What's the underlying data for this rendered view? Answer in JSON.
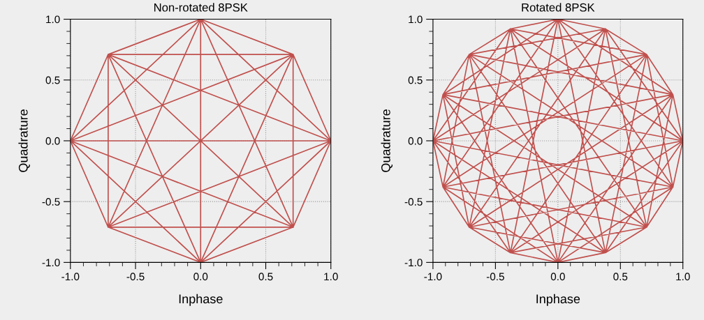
{
  "chart_data": [
    {
      "type": "line",
      "title": "Non-rotated 8PSK",
      "xlabel": "Inphase",
      "ylabel": "Quadrature",
      "xlim": [
        -1.0,
        1.0
      ],
      "ylim": [
        -1.0,
        1.0
      ],
      "xticks": [
        {
          "value": -1,
          "label": "-1.0"
        },
        {
          "value": -0.5,
          "label": "-0.5"
        },
        {
          "value": 0,
          "label": "0.0"
        },
        {
          "value": 0.5,
          "label": "0.5"
        },
        {
          "value": 1,
          "label": "1.0"
        }
      ],
      "yticks": [
        {
          "value": -1,
          "label": "-1.0"
        },
        {
          "value": -0.5,
          "label": "-0.5"
        },
        {
          "value": 0,
          "label": "0.0"
        },
        {
          "value": 0.5,
          "label": "0.5"
        },
        {
          "value": 1,
          "label": "1.0"
        }
      ],
      "grid": true,
      "series": [
        {
          "color": "#c0504d",
          "x": [
            1,
            0.71,
            1,
            0,
            1,
            -0.71,
            1,
            -1,
            1,
            -0.71,
            1,
            0,
            1,
            0.71,
            null,
            0.71,
            0,
            0.71,
            -0.71,
            0.71,
            -1,
            0.71,
            -0.71,
            0.71,
            0,
            0.71,
            0.71,
            null,
            0,
            -0.71,
            0,
            -1,
            0,
            -0.71,
            0,
            0,
            0,
            0.71,
            null,
            -0.71,
            -1,
            -0.71,
            -0.71,
            -0.71,
            0,
            -0.71,
            0.71,
            null,
            -1,
            -0.71,
            -1,
            0,
            -1,
            0.71,
            null,
            -0.71,
            0,
            -0.71,
            0.71,
            null,
            0,
            0.71
          ],
          "values": [
            0,
            0.71,
            0,
            1,
            0,
            0.71,
            0,
            0,
            0,
            -0.71,
            0,
            -1,
            0,
            -0.71,
            null,
            0.71,
            1,
            0.71,
            0.71,
            0.71,
            0,
            0.71,
            -0.71,
            0.71,
            -1,
            0.71,
            -0.71,
            null,
            1,
            0.71,
            1,
            0,
            1,
            -0.71,
            1,
            -1,
            1,
            -0.71,
            null,
            0.71,
            0,
            0.71,
            -0.71,
            0.71,
            -1,
            0.71,
            -0.71,
            null,
            0,
            -0.71,
            0,
            -1,
            0,
            -0.71,
            null,
            -0.71,
            -1,
            -0.71,
            -0.71,
            null,
            -1,
            -0.71
          ]
        }
      ]
    },
    {
      "type": "line",
      "title": "Rotated 8PSK",
      "xlabel": "Inphase",
      "ylabel": "Quadrature",
      "xlim": [
        -1.0,
        1.0
      ],
      "ylim": [
        -1.0,
        1.0
      ],
      "xticks": [
        {
          "value": -1,
          "label": "-1.0"
        },
        {
          "value": -0.5,
          "label": "-0.5"
        },
        {
          "value": 0,
          "label": "0.0"
        },
        {
          "value": 0.5,
          "label": "0.5"
        },
        {
          "value": 1,
          "label": "1.0"
        }
      ],
      "yticks": [
        {
          "value": -1,
          "label": "-1.0"
        },
        {
          "value": -0.5,
          "label": "-0.5"
        },
        {
          "value": 0,
          "label": "0.0"
        },
        {
          "value": 0.5,
          "label": "0.5"
        },
        {
          "value": 1,
          "label": "1.0"
        }
      ],
      "grid": true,
      "series": [
        {
          "color": "#c0504d",
          "x": [
            1,
            0.92,
            1,
            0.38,
            1,
            -0.38,
            1,
            -0.92,
            1,
            -0.92,
            1,
            -0.38,
            1,
            0.38,
            1,
            0.92,
            null,
            0.71,
            0.92,
            0.71,
            0.38,
            0.71,
            -0.38,
            0.71,
            -0.92,
            0.71,
            -0.92,
            0.71,
            -0.38,
            0.71,
            0.38,
            0.71,
            0.92,
            null,
            0,
            0.92,
            0,
            0.38,
            0,
            -0.38,
            0,
            -0.92,
            0,
            -0.92,
            0,
            -0.38,
            0,
            0.38,
            0,
            0.92,
            null,
            -0.71,
            0.92,
            -0.71,
            0.38,
            -0.71,
            -0.38,
            -0.71,
            -0.92,
            -0.71,
            -0.92,
            -0.71,
            -0.38,
            -0.71,
            0.38,
            -0.71,
            0.92,
            null,
            -1,
            0.92,
            -1,
            0.38,
            -1,
            -0.38,
            -1,
            -0.92,
            -1,
            -0.92,
            -1,
            -0.38,
            -1,
            0.38,
            -1,
            0.92,
            null,
            -0.71,
            0.92,
            -0.71,
            0.38,
            -0.71,
            -0.38,
            -0.71,
            -0.92,
            -0.71,
            -0.92,
            -0.71,
            -0.38,
            -0.71,
            0.38,
            -0.71,
            0.92,
            null,
            0,
            0.92,
            0,
            0.38,
            0,
            -0.38,
            0,
            -0.92,
            0,
            -0.92,
            0,
            -0.38,
            0,
            0.38,
            0,
            0.92,
            null,
            0.71,
            0.92,
            0.71,
            0.38,
            0.71,
            -0.38,
            0.71,
            -0.92,
            0.71,
            -0.92,
            0.71,
            -0.38,
            0.71,
            0.38,
            0.71,
            0.92
          ],
          "values": [
            0,
            0.38,
            0,
            0.92,
            0,
            0.92,
            0,
            0.38,
            0,
            -0.38,
            0,
            -0.92,
            0,
            -0.92,
            0,
            -0.38,
            null,
            0.71,
            0.38,
            0.71,
            0.92,
            0.71,
            0.92,
            0.71,
            0.38,
            0.71,
            -0.38,
            0.71,
            -0.92,
            0.71,
            -0.92,
            0.71,
            -0.38,
            null,
            1,
            0.38,
            1,
            0.92,
            1,
            0.92,
            1,
            0.38,
            1,
            -0.38,
            1,
            -0.92,
            1,
            -0.92,
            1,
            -0.38,
            null,
            0.71,
            0.38,
            0.71,
            0.92,
            0.71,
            0.92,
            0.71,
            0.38,
            0.71,
            -0.38,
            0.71,
            -0.92,
            0.71,
            -0.92,
            0.71,
            -0.38,
            null,
            0,
            0.38,
            0,
            0.92,
            0,
            0.92,
            0,
            0.38,
            0,
            -0.38,
            0,
            -0.92,
            0,
            -0.92,
            0,
            -0.38,
            null,
            -0.71,
            0.38,
            -0.71,
            0.92,
            -0.71,
            0.92,
            -0.71,
            0.38,
            -0.71,
            -0.38,
            -0.71,
            -0.92,
            -0.71,
            -0.92,
            -0.71,
            -0.38,
            null,
            -1,
            0.38,
            -1,
            0.92,
            -1,
            0.92,
            -1,
            0.38,
            -1,
            -0.38,
            -1,
            -0.92,
            -1,
            -0.92,
            -1,
            -0.38,
            null,
            -0.71,
            0.38,
            -0.71,
            0.92,
            -0.71,
            0.92,
            -0.71,
            0.38,
            -0.71,
            -0.38,
            -0.71,
            -0.92,
            -0.71,
            -0.92,
            -0.71,
            -0.38
          ]
        }
      ]
    }
  ]
}
